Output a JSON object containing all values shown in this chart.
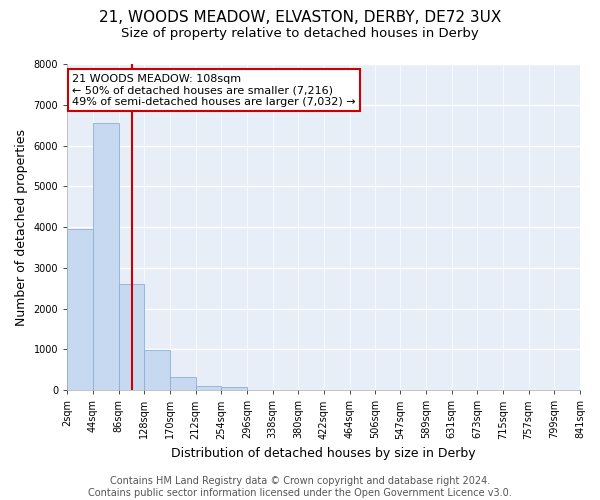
{
  "title": "21, WOODS MEADOW, ELVASTON, DERBY, DE72 3UX",
  "subtitle": "Size of property relative to detached houses in Derby",
  "xlabel": "Distribution of detached houses by size in Derby",
  "ylabel": "Number of detached properties",
  "bin_edges": [
    2,
    44,
    86,
    128,
    170,
    212,
    254,
    296,
    338,
    380,
    422,
    464,
    506,
    547,
    589,
    631,
    673,
    715,
    757,
    799,
    841
  ],
  "bar_heights": [
    3950,
    6550,
    2600,
    975,
    325,
    110,
    75,
    0,
    0,
    0,
    0,
    0,
    0,
    0,
    0,
    0,
    0,
    0,
    0,
    0
  ],
  "bar_color": "#c6d9f0",
  "bar_edge_color": "#8ab0d4",
  "vline_x": 108,
  "vline_color": "#cc0000",
  "ylim": [
    0,
    8000
  ],
  "yticks": [
    0,
    1000,
    2000,
    3000,
    4000,
    5000,
    6000,
    7000,
    8000
  ],
  "tick_labels": [
    "2sqm",
    "44sqm",
    "86sqm",
    "128sqm",
    "170sqm",
    "212sqm",
    "254sqm",
    "296sqm",
    "338sqm",
    "380sqm",
    "422sqm",
    "464sqm",
    "506sqm",
    "547sqm",
    "589sqm",
    "631sqm",
    "673sqm",
    "715sqm",
    "757sqm",
    "799sqm",
    "841sqm"
  ],
  "annotation_title": "21 WOODS MEADOW: 108sqm",
  "annotation_line1": "← 50% of detached houses are smaller (7,216)",
  "annotation_line2": "49% of semi-detached houses are larger (7,032) →",
  "annotation_box_facecolor": "#ffffff",
  "annotation_box_edgecolor": "#cc0000",
  "footer_line1": "Contains HM Land Registry data © Crown copyright and database right 2024.",
  "footer_line2": "Contains public sector information licensed under the Open Government Licence v3.0.",
  "fig_bg_color": "#ffffff",
  "plot_bg_color": "#e8eef8",
  "grid_color": "#ffffff",
  "title_fontsize": 11,
  "subtitle_fontsize": 9.5,
  "axis_label_fontsize": 9,
  "tick_fontsize": 7,
  "annotation_fontsize": 8,
  "footer_fontsize": 7
}
